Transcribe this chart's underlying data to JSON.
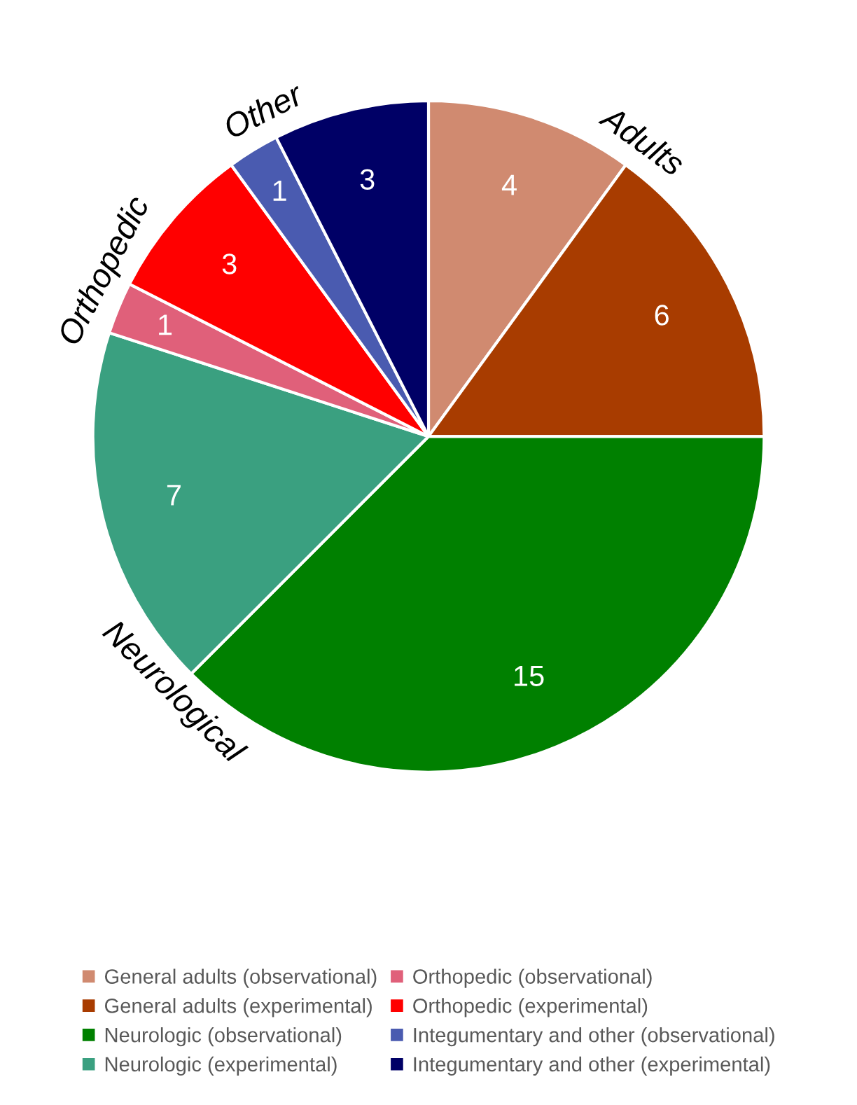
{
  "chart_data": {
    "type": "pie",
    "categories": [
      "General adults (observational)",
      "General adults (experimental)",
      "Neurologic (observational)",
      "Neurologic (experimental)",
      "Orthopedic (observational)",
      "Orthopedic (experimental)",
      "Integumentary and other (observational)",
      "Integumentary and other (experimental)"
    ],
    "values": [
      4,
      6,
      15,
      7,
      1,
      3,
      1,
      3
    ],
    "colors": [
      "#d08a70",
      "#a83c00",
      "#008000",
      "#3aa080",
      "#e0607a",
      "#ff0000",
      "#4a5bb0",
      "#000066"
    ],
    "data_labels": true,
    "legend": "bottom",
    "annotations": [
      "Adults",
      "Neurological",
      "Orthopedic",
      "Other"
    ]
  }
}
